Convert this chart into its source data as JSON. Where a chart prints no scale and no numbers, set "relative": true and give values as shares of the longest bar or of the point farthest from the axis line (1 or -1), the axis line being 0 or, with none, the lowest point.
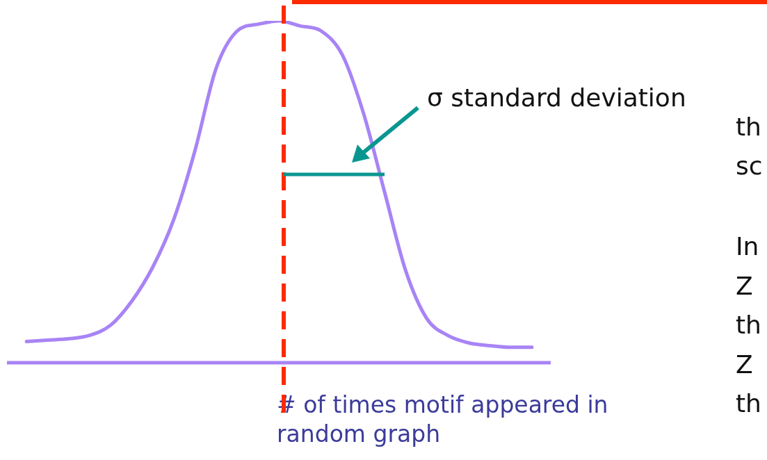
{
  "chart_data": {
    "type": "line",
    "relative": true,
    "xlabel": "# of times motif appeared in random graph",
    "categories": [
      null,
      null,
      null,
      null,
      null,
      null,
      null,
      null,
      null,
      null,
      null,
      null,
      null,
      null,
      null,
      null,
      null,
      null,
      null,
      null,
      null,
      null,
      null,
      null,
      null
    ],
    "series": [
      {
        "color": "#a884f5",
        "values": [
          0.062,
          0.066,
          0.07,
          0.08,
          0.11,
          0.18,
          0.28,
          0.42,
          0.62,
          0.86,
          0.97,
          0.99,
          1.0,
          0.985,
          0.97,
          0.9,
          0.73,
          0.5,
          0.27,
          0.13,
          0.08,
          0.058,
          0.05,
          0.045,
          0.045
        ]
      }
    ],
    "annotations": [
      "σ standard deviation",
      "th",
      "sc",
      "In",
      "Z",
      "th",
      "Z",
      "th"
    ],
    "marker": "none",
    "line_style": "solid",
    "legend": false,
    "tick_labels": false
  }
}
